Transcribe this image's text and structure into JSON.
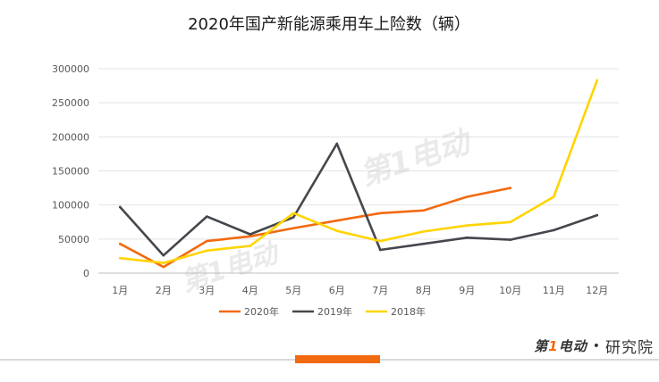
{
  "chart_data": {
    "type": "line",
    "title": "2020年国产新能源乘用车上险数（辆）",
    "categories": [
      "1月",
      "2月",
      "3月",
      "4月",
      "5月",
      "6月",
      "7月",
      "8月",
      "9月",
      "10月",
      "11月",
      "12月"
    ],
    "ylim": [
      0,
      300000
    ],
    "yticks": [
      "0",
      "50000",
      "100000",
      "150000",
      "200000",
      "250000",
      "300000"
    ],
    "grid": true,
    "legend_position": "bottom",
    "series": [
      {
        "name": "2020年",
        "color": "#f26a10",
        "values": [
          43000,
          9000,
          47000,
          54000,
          66000,
          77000,
          88000,
          92000,
          112000,
          125000,
          null,
          null
        ]
      },
      {
        "name": "2019年",
        "color": "#44474c",
        "values": [
          97000,
          26000,
          83000,
          57000,
          82000,
          190000,
          34000,
          43000,
          52000,
          49000,
          63000,
          85000
        ]
      },
      {
        "name": "2018年",
        "color": "#ffd400",
        "values": [
          22000,
          15000,
          33000,
          40000,
          88000,
          62000,
          47000,
          61000,
          70000,
          75000,
          112000,
          283000
        ]
      }
    ]
  },
  "brand": {
    "logo_prefix": "第",
    "logo_accent": "1",
    "logo_suffix": "电动",
    "separator": "•",
    "subtitle": "研究院",
    "watermark": "第1电动"
  }
}
